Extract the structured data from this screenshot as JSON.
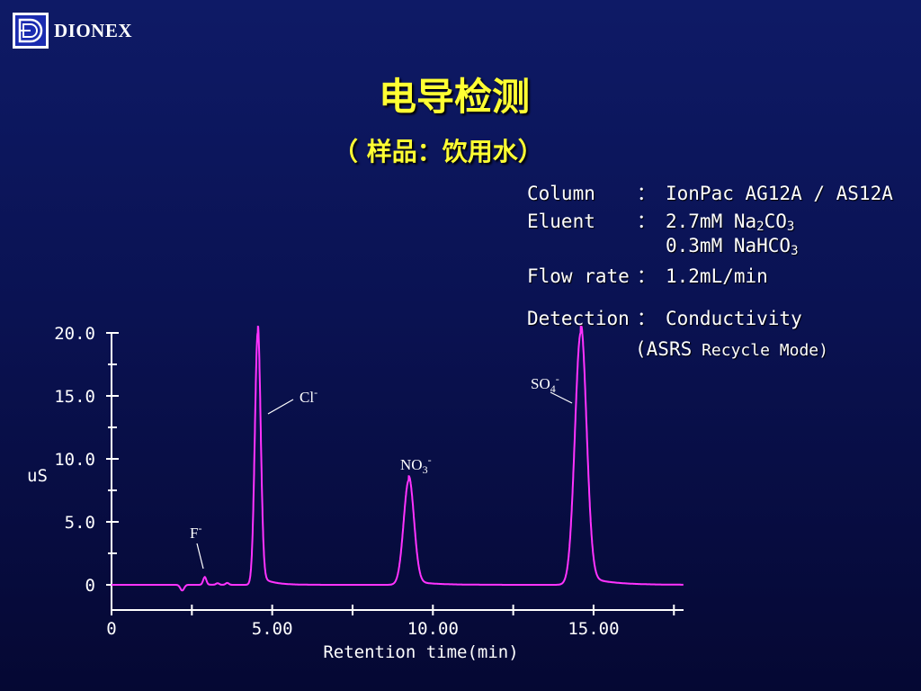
{
  "brand": {
    "name": "DIONEX"
  },
  "title": "电导检测",
  "subtitle": "（ 样品：饮用水）",
  "conditions": {
    "column": {
      "label": "Column",
      "sep": "：",
      "value": "IonPac AG12A / AS12A"
    },
    "eluent": {
      "label": "Eluent",
      "sep": "：",
      "line1": {
        "pre": "2.7mM Na",
        "s1": "2",
        "mid": "CO",
        "s2": "3"
      },
      "line2": {
        "pre": "0.3mM NaHCO",
        "s1": "3"
      }
    },
    "flow": {
      "label": "Flow rate",
      "sep": "：",
      "value": "1.2mL/min"
    },
    "detection": {
      "label": "Detection",
      "sep": "：",
      "value": "Conductivity",
      "note_open": "(",
      "note_main": "ASRS",
      "note_rest": " Recycle Mode)"
    }
  },
  "colors": {
    "trace": "#ff33ff",
    "title": "#ffff33",
    "axis": "#ffffff"
  },
  "chart_data": {
    "type": "line",
    "title": "",
    "xlabel": "Retention time(min)",
    "ylabel": "uS",
    "xlim": [
      0,
      17.8
    ],
    "ylim": [
      0,
      20
    ],
    "x_ticks": [
      0,
      5,
      10,
      15
    ],
    "x_tick_labels": [
      "0",
      "5.00",
      "10.00",
      "15.00"
    ],
    "x_minor_ticks": [
      2.5,
      7.5,
      12.5,
      17.5
    ],
    "y_ticks": [
      0,
      5,
      10,
      15,
      20
    ],
    "y_tick_labels": [
      "0",
      "5.0",
      "10.0",
      "15.0",
      "20.0"
    ],
    "y_minor_ticks": [
      2.5,
      7.5,
      12.5,
      17.5
    ],
    "grid": false,
    "series": [
      {
        "peaks": [
          {
            "label": "F",
            "charge": "-",
            "rt": 2.9,
            "height": 0.6
          },
          {
            "label": "Cl",
            "charge": "-",
            "rt": 4.55,
            "height": 20
          },
          {
            "label": "NO",
            "sub": "3",
            "charge": "-",
            "rt": 9.25,
            "height": 8.3
          },
          {
            "label": "SO",
            "sub": "4",
            "charge": "-",
            "rt": 14.6,
            "height": 20
          }
        ]
      }
    ]
  }
}
